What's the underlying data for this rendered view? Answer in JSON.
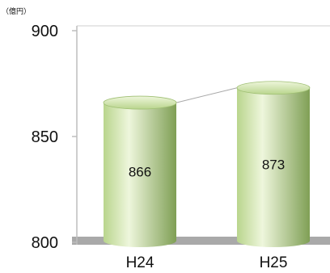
{
  "chart_data": {
    "type": "bar",
    "style": "cylinder",
    "unit": "（億円）",
    "categories": [
      "H24",
      "H25"
    ],
    "values": [
      866,
      873
    ],
    "value_labels": [
      "866",
      "873"
    ],
    "ylim": [
      800,
      900
    ],
    "yticks": [
      "800",
      "850",
      "900"
    ],
    "ytick_values": [
      800,
      850,
      900
    ],
    "grid": false,
    "connector_line": true,
    "colors": {
      "bar_light": "#eef6dc",
      "bar_mid": "#b9d58d",
      "bar_dark": "#7f9f55",
      "floor": "#a9a9a9",
      "axis": "#bdbdbd",
      "plot_border": "#cfcfcf"
    }
  }
}
